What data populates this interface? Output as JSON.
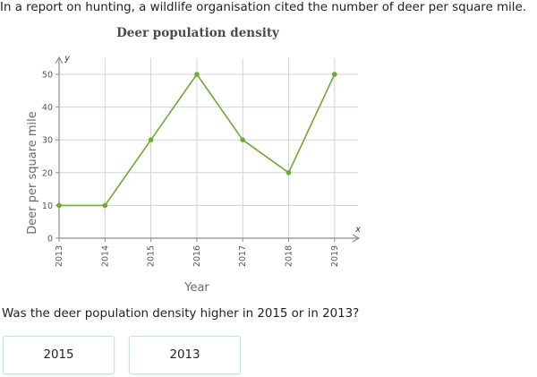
{
  "intro_text": "In a report on hunting, a wildlife organisation cited the number of deer per square mile.",
  "question": "Was the deer population density higher in 2015 or in 2013?",
  "answers": [
    "2015",
    "2013"
  ],
  "colors": {
    "line": "#6aac2f",
    "grid": "#d3d3d3",
    "axis": "#8c8c8c",
    "answer_border": "#bfe3f3"
  },
  "chart_data": {
    "type": "line",
    "title": "Deer population density",
    "xlabel": "Year",
    "ylabel": "Deer per square mile",
    "x_axis_letter": "x",
    "y_axis_letter": "y",
    "categories": [
      "2013",
      "2014",
      "2015",
      "2016",
      "2017",
      "2018",
      "2019"
    ],
    "values": [
      10,
      10,
      30,
      50,
      30,
      20,
      50
    ],
    "ylim": [
      0,
      55
    ],
    "yticks": [
      0,
      10,
      20,
      30,
      40,
      50
    ],
    "grid": true,
    "legend": "none"
  }
}
